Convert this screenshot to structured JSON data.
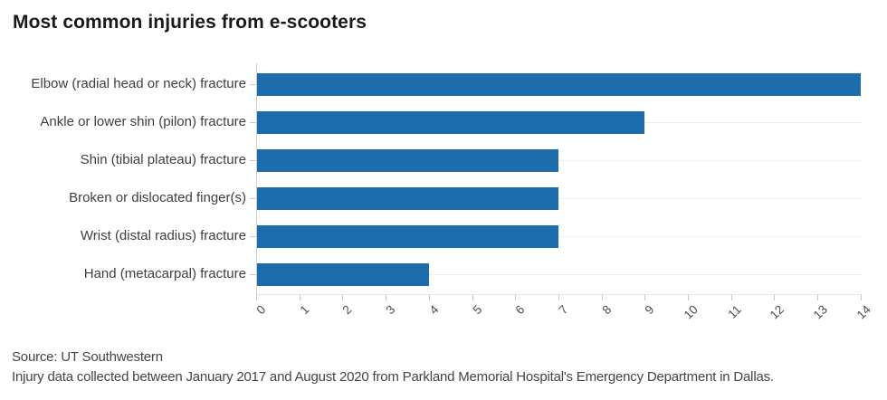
{
  "title": "Most common injuries from e-scooters",
  "footer": {
    "source_line": "Source: UT Southwestern",
    "note_line": "Injury data collected between January 2017 and August 2020 from Parkland Memorial Hospital's Emergency Department in Dallas."
  },
  "colors": {
    "bar": "#1d6cab",
    "title_text": "#1a1a1a",
    "category_text": "#3f3f3f",
    "axis_tick_text": "#4d4d4d",
    "axis_line": "#cccccc",
    "row_gridline": "#dddddd",
    "background": "#ffffff"
  },
  "chart_data": {
    "type": "bar",
    "orientation": "horizontal",
    "title": "Most common injuries from e-scooters",
    "categories": [
      "Elbow (radial head or neck) fracture",
      "Ankle or lower shin (pilon) fracture",
      "Shin (tibial plateau) fracture",
      "Broken or dislocated finger(s)",
      "Wrist (distal radius) fracture",
      "Hand (metacarpal) fracture"
    ],
    "values": [
      14,
      9,
      7,
      7,
      7,
      4
    ],
    "xlabel": "",
    "ylabel": "",
    "xlim": [
      0,
      14
    ],
    "x_ticks": [
      0,
      1,
      2,
      3,
      4,
      5,
      6,
      7,
      8,
      9,
      10,
      11,
      12,
      13,
      14
    ],
    "grid": "dotted horizontal row guides, left axis line, bottom ticks",
    "legend": "none",
    "bar_color": "#1d6cab"
  }
}
